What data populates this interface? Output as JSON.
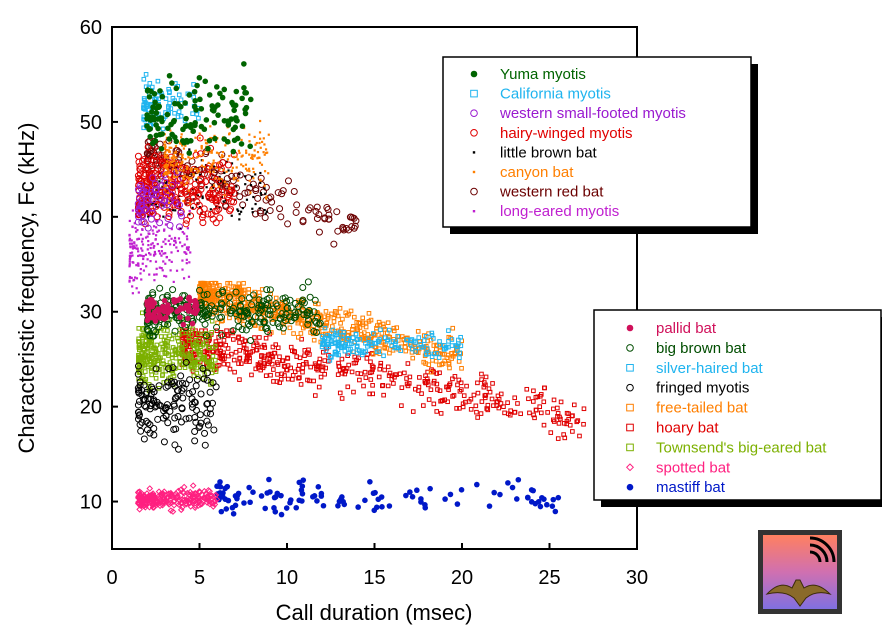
{
  "chart_data": {
    "type": "scatter",
    "title": "",
    "xlabel": "Call duration (msec)",
    "ylabel": "Characteristic frequency, Fc (kHz)",
    "xlim": [
      0,
      30
    ],
    "ylim": [
      5,
      60
    ],
    "xticks": [
      0,
      5,
      10,
      15,
      20,
      25,
      30
    ],
    "yticks": [
      10,
      20,
      30,
      40,
      50,
      60
    ],
    "grid": false,
    "legends": [
      {
        "placement": "top-right",
        "entries": [
          {
            "name": "Yuma myotis",
            "color": "#006400",
            "marker": "filled-circle"
          },
          {
            "name": "California myotis",
            "color": "#1fb4ef",
            "marker": "square"
          },
          {
            "name": "western small-footed myotis",
            "color": "#9a1ad0",
            "marker": "open-circle"
          },
          {
            "name": "hairy-winged myotis",
            "color": "#e00000",
            "marker": "open-circle"
          },
          {
            "name": "little brown bat",
            "color": "#000000",
            "marker": "dot"
          },
          {
            "name": "canyon bat",
            "color": "#ff7f00",
            "marker": "dot"
          },
          {
            "name": "western red bat",
            "color": "#6b0000",
            "marker": "open-circle"
          },
          {
            "name": "long-eared myotis",
            "color": "#c020d0",
            "marker": "dot"
          }
        ]
      },
      {
        "placement": "right",
        "entries": [
          {
            "name": "pallid bat",
            "color": "#d0105a",
            "marker": "filled-circle"
          },
          {
            "name": "big brown bat",
            "color": "#004d00",
            "marker": "open-circle"
          },
          {
            "name": "silver-haired bat",
            "color": "#1fb4ef",
            "marker": "square"
          },
          {
            "name": "fringed myotis",
            "color": "#000000",
            "marker": "open-circle"
          },
          {
            "name": "free-tailed bat",
            "color": "#ff7f00",
            "marker": "square"
          },
          {
            "name": "hoary bat",
            "color": "#e00000",
            "marker": "square"
          },
          {
            "name": "Townsend's big-eared bat",
            "color": "#7cb000",
            "marker": "square"
          },
          {
            "name": "spotted bat",
            "color": "#ff2080",
            "marker": "diamond"
          },
          {
            "name": "mastiff bat",
            "color": "#0018c8",
            "marker": "filled-circle"
          }
        ]
      }
    ],
    "series": [
      {
        "name": "Yuma myotis",
        "clusters": [
          {
            "x": [
              2,
              8
            ],
            "y": [
              44,
              58
            ]
          }
        ]
      },
      {
        "name": "California myotis",
        "clusters": [
          {
            "x": [
              1.8,
              5
            ],
            "y": [
              47,
              56
            ]
          }
        ]
      },
      {
        "name": "western small-footed myotis",
        "clusters": [
          {
            "x": [
              1.5,
              4
            ],
            "y": [
              37,
              47
            ]
          }
        ]
      },
      {
        "name": "hairy-winged myotis",
        "clusters": [
          {
            "x": [
              1.5,
              7
            ],
            "y": [
              37,
              49
            ]
          }
        ]
      },
      {
        "name": "little brown bat",
        "clusters": [
          {
            "x": [
              2,
              9
            ],
            "y": [
              37,
              48
            ]
          }
        ]
      },
      {
        "name": "canyon bat",
        "clusters": [
          {
            "x": [
              3,
              9
            ],
            "y": [
              40,
              52
            ]
          }
        ]
      },
      {
        "name": "western red bat",
        "clusters": [
          {
            "x": [
              2,
              14
            ],
            "y": [
              35,
              48
            ]
          }
        ]
      },
      {
        "name": "long-eared myotis",
        "clusters": [
          {
            "x": [
              1,
              4.5
            ],
            "y": [
              30,
              43
            ]
          }
        ]
      },
      {
        "name": "pallid bat",
        "clusters": [
          {
            "x": [
              2,
              5
            ],
            "y": [
              28,
              33
            ]
          }
        ]
      },
      {
        "name": "big brown bat",
        "clusters": [
          {
            "x": [
              2,
              12
            ],
            "y": [
              26,
              34
            ]
          }
        ]
      },
      {
        "name": "silver-haired bat",
        "clusters": [
          {
            "x": [
              12,
              20
            ],
            "y": [
              24,
              29
            ]
          }
        ]
      },
      {
        "name": "fringed myotis",
        "clusters": [
          {
            "x": [
              1.5,
              6
            ],
            "y": [
              14,
              26
            ]
          }
        ]
      },
      {
        "name": "free-tailed bat",
        "clusters": [
          {
            "x": [
              5,
              20
            ],
            "y": [
              22,
              33
            ]
          }
        ]
      },
      {
        "name": "hoary bat",
        "clusters": [
          {
            "x": [
              4,
              27
            ],
            "y": [
              15,
              28
            ]
          }
        ]
      },
      {
        "name": "Townsend's big-eared bat",
        "clusters": [
          {
            "x": [
              1.5,
              6
            ],
            "y": [
              20,
              31
            ]
          }
        ]
      },
      {
        "name": "spotted bat",
        "clusters": [
          {
            "x": [
              1.5,
              6
            ],
            "y": [
              8.5,
              12
            ]
          }
        ]
      },
      {
        "name": "mastiff bat",
        "clusters": [
          {
            "x": [
              6,
              26
            ],
            "y": [
              7.5,
              13.5
            ]
          }
        ]
      }
    ]
  }
}
